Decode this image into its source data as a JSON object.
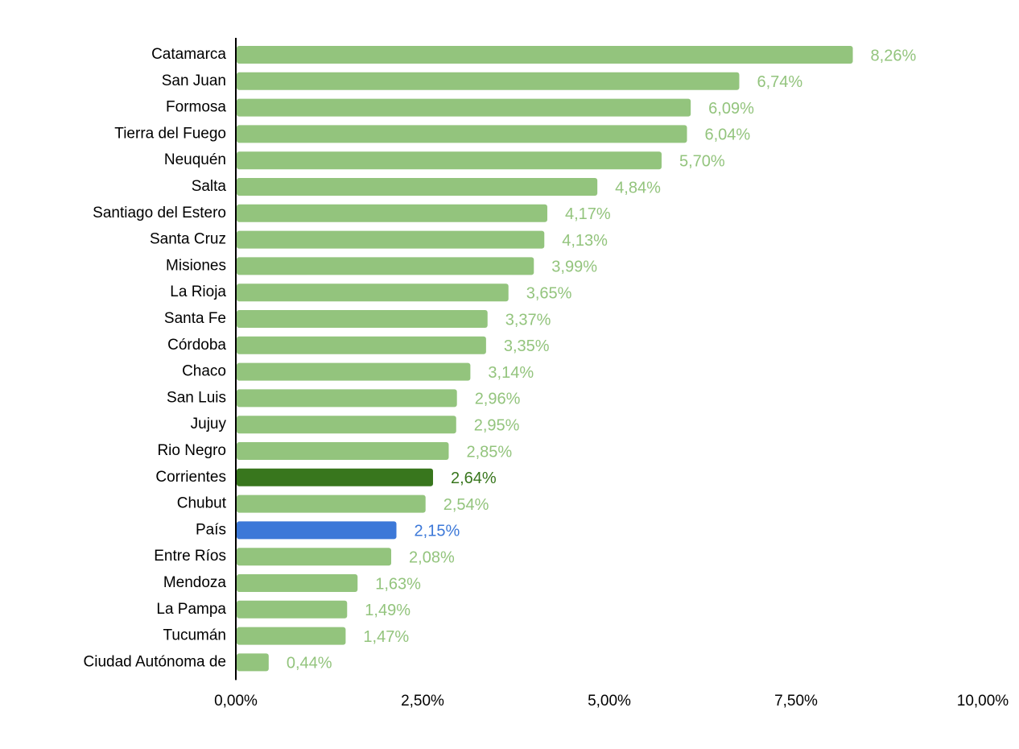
{
  "chart_data": {
    "type": "bar",
    "orientation": "horizontal",
    "title": "",
    "xlabel": "",
    "ylabel": "",
    "xlim": [
      0,
      10
    ],
    "x_ticks": [
      "0,00%",
      "2,50%",
      "5,00%",
      "7,50%",
      "10,00%"
    ],
    "grid": false,
    "legend": "none",
    "categories": [
      "Catamarca",
      "San Juan",
      "Formosa",
      "Tierra del Fuego",
      "Neuquén",
      "Salta",
      "Santiago del Estero",
      "Santa Cruz",
      "Misiones",
      "La Rioja",
      "Santa Fe",
      "Córdoba",
      "Chaco",
      "San Luis",
      "Jujuy",
      "Rio Negro",
      "Corrientes",
      "Chubut",
      "País",
      "Entre Ríos",
      "Mendoza",
      "La Pampa",
      "Tucumán",
      "Ciudad Autónoma de"
    ],
    "values": [
      8.26,
      6.74,
      6.09,
      6.04,
      5.7,
      4.84,
      4.17,
      4.13,
      3.99,
      3.65,
      3.37,
      3.35,
      3.14,
      2.96,
      2.95,
      2.85,
      2.64,
      2.54,
      2.15,
      2.08,
      1.63,
      1.49,
      1.47,
      0.44
    ],
    "data_labels": [
      "8,26%",
      "6,74%",
      "6,09%",
      "6,04%",
      "5,70%",
      "4,84%",
      "4,17%",
      "4,13%",
      "3,99%",
      "3,65%",
      "3,37%",
      "3,35%",
      "3,14%",
      "2,96%",
      "2,95%",
      "2,85%",
      "2,64%",
      "2,54%",
      "2,15%",
      "2,08%",
      "1,63%",
      "1,49%",
      "1,47%",
      "0,44%"
    ],
    "colors": {
      "default": "#93c47d",
      "Corrientes": "#38761d",
      "País": "#3c78d8",
      "axis": "#000000"
    }
  }
}
